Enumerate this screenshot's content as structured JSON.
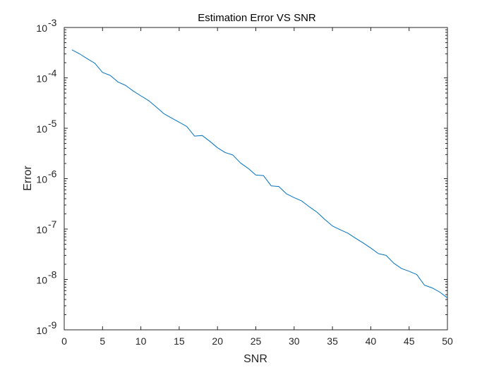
{
  "chart_data": {
    "type": "line",
    "title": "Estimation Error VS SNR",
    "xlabel": "SNR",
    "ylabel": "Error",
    "xlim": [
      0,
      50
    ],
    "ylim": [
      1e-09,
      0.001
    ],
    "yscale": "log",
    "grid": false,
    "legend": "none",
    "xticks": [
      "0",
      "5",
      "10",
      "15",
      "20",
      "25",
      "30",
      "35",
      "40",
      "45",
      "50"
    ],
    "yticks": [
      {
        "base": "10",
        "exp": "-9"
      },
      {
        "base": "10",
        "exp": "-8"
      },
      {
        "base": "10",
        "exp": "-7"
      },
      {
        "base": "10",
        "exp": "-6"
      },
      {
        "base": "10",
        "exp": "-5"
      },
      {
        "base": "10",
        "exp": "-4"
      },
      {
        "base": "10",
        "exp": "-3"
      }
    ],
    "series": [
      {
        "color": "#0072BD",
        "x": [
          1,
          2,
          3,
          4,
          5,
          6,
          7,
          8,
          9,
          10,
          11,
          12,
          13,
          14,
          15,
          16,
          17,
          18,
          19,
          20,
          21,
          22,
          23,
          24,
          25,
          26,
          27,
          28,
          29,
          30,
          31,
          32,
          33,
          34,
          35,
          36,
          37,
          38,
          39,
          40,
          41,
          42,
          43,
          44,
          45,
          46,
          47,
          48,
          49,
          50
        ],
        "y": [
          0.00036,
          0.0003,
          0.00024,
          0.000195,
          0.000128,
          0.000112,
          8.3e-05,
          7.1e-05,
          5.5e-05,
          4.4e-05,
          3.55e-05,
          2.65e-05,
          1.95e-05,
          1.6e-05,
          1.32e-05,
          1.08e-05,
          7e-06,
          7.2e-06,
          5.5e-06,
          4.1e-06,
          3.3e-06,
          2.95e-06,
          2.05e-06,
          1.6e-06,
          1.18e-06,
          1.15e-06,
          7.2e-07,
          7e-07,
          5e-07,
          4.2e-07,
          3.6e-07,
          2.75e-07,
          2.15e-07,
          1.55e-07,
          1.15e-07,
          9.7e-08,
          8.3e-08,
          6.6e-08,
          5.3e-08,
          4.2e-08,
          3.25e-08,
          3e-08,
          2.1e-08,
          1.65e-08,
          1.45e-08,
          1.25e-08,
          7.7e-09,
          6.8e-09,
          5.6e-09,
          4.3e-09
        ]
      }
    ]
  }
}
